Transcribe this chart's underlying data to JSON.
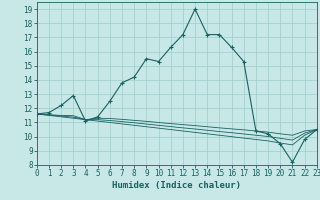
{
  "xlabel": "Humidex (Indice chaleur)",
  "xlim": [
    0,
    23
  ],
  "ylim": [
    8,
    19.5
  ],
  "yticks": [
    8,
    9,
    10,
    11,
    12,
    13,
    14,
    15,
    16,
    17,
    18,
    19
  ],
  "xticks": [
    0,
    1,
    2,
    3,
    4,
    5,
    6,
    7,
    8,
    9,
    10,
    11,
    12,
    13,
    14,
    15,
    16,
    17,
    18,
    19,
    20,
    21,
    22,
    23
  ],
  "bg": "#c8e8e8",
  "grid_color": "#9fcece",
  "lc": "#1a6060",
  "main_curve": [
    11.6,
    11.7,
    12.2,
    12.9,
    11.1,
    11.4,
    12.5,
    13.8,
    14.2,
    15.5,
    15.3,
    16.3,
    17.2,
    19.0,
    17.2,
    17.2,
    16.3,
    15.3,
    10.4,
    10.2,
    9.5,
    8.2,
    9.8,
    10.5
  ],
  "ref1": [
    11.6,
    11.55,
    11.5,
    11.48,
    11.2,
    11.3,
    11.28,
    11.22,
    11.15,
    11.08,
    11.0,
    10.92,
    10.85,
    10.78,
    10.7,
    10.62,
    10.55,
    10.48,
    10.4,
    10.32,
    10.2,
    10.1,
    10.4,
    10.5
  ],
  "ref2": [
    11.6,
    11.5,
    11.4,
    11.3,
    11.2,
    11.1,
    11.0,
    10.9,
    10.8,
    10.7,
    10.6,
    10.5,
    10.4,
    10.3,
    10.2,
    10.1,
    10.0,
    9.9,
    9.8,
    9.7,
    9.55,
    9.42,
    10.1,
    10.5
  ],
  "ref3": [
    11.6,
    11.52,
    11.45,
    11.38,
    11.2,
    11.2,
    11.14,
    11.06,
    10.98,
    10.89,
    10.8,
    10.71,
    10.62,
    10.54,
    10.45,
    10.36,
    10.28,
    10.19,
    10.1,
    10.01,
    9.88,
    9.76,
    10.25,
    10.5
  ]
}
